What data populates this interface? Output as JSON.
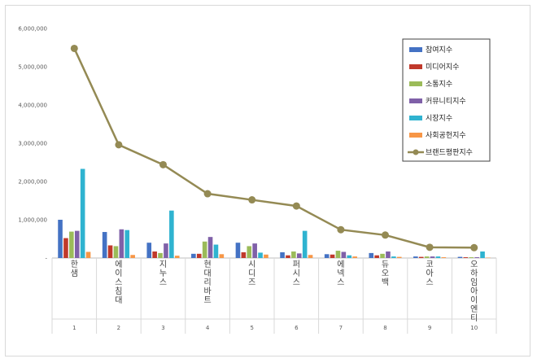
{
  "chart_data": {
    "type": "bar",
    "title": "",
    "xlabel": "",
    "ylabel": "",
    "ylim": [
      0,
      6000000
    ],
    "yticks": [
      "-",
      "1,000,000",
      "2,000,000",
      "3,000,000",
      "4,000,000",
      "5,000,000",
      "6,000,000"
    ],
    "grid": false,
    "legend": "right",
    "categories": [
      "한샘",
      "에이스침대",
      "지누스",
      "현대리바트",
      "시디즈",
      "퍼시스",
      "에넥스",
      "듀오백",
      "코아스",
      "오하임아이엔티"
    ],
    "ranks": [
      "1",
      "2",
      "3",
      "4",
      "5",
      "6",
      "7",
      "8",
      "9",
      "10"
    ],
    "series": [
      {
        "name": "참여지수",
        "type": "bar",
        "color": "#4472c4",
        "values": [
          1000000,
          680000,
          400000,
          110000,
          400000,
          150000,
          100000,
          130000,
          40000,
          30000
        ]
      },
      {
        "name": "미디어지수",
        "type": "bar",
        "color": "#c0392b",
        "values": [
          520000,
          330000,
          170000,
          110000,
          150000,
          70000,
          90000,
          70000,
          30000,
          20000
        ]
      },
      {
        "name": "소통지수",
        "type": "bar",
        "color": "#9bbb59",
        "values": [
          690000,
          310000,
          130000,
          430000,
          310000,
          170000,
          190000,
          110000,
          40000,
          20000
        ]
      },
      {
        "name": "커뮤니티지수",
        "type": "bar",
        "color": "#7f60a8",
        "values": [
          710000,
          750000,
          380000,
          550000,
          380000,
          120000,
          160000,
          170000,
          40000,
          20000
        ]
      },
      {
        "name": "시장지수",
        "type": "bar",
        "color": "#2fb3d0",
        "values": [
          2330000,
          730000,
          1240000,
          350000,
          140000,
          710000,
          70000,
          40000,
          40000,
          170000
        ]
      },
      {
        "name": "사회공헌지수",
        "type": "bar",
        "color": "#f79646",
        "values": [
          160000,
          80000,
          60000,
          100000,
          90000,
          80000,
          40000,
          30000,
          20000,
          10000
        ]
      },
      {
        "name": "브랜드평판지수",
        "type": "line",
        "color": "#948a54",
        "values": [
          5480000,
          2960000,
          2440000,
          1680000,
          1520000,
          1360000,
          740000,
          600000,
          280000,
          270000
        ]
      }
    ]
  }
}
